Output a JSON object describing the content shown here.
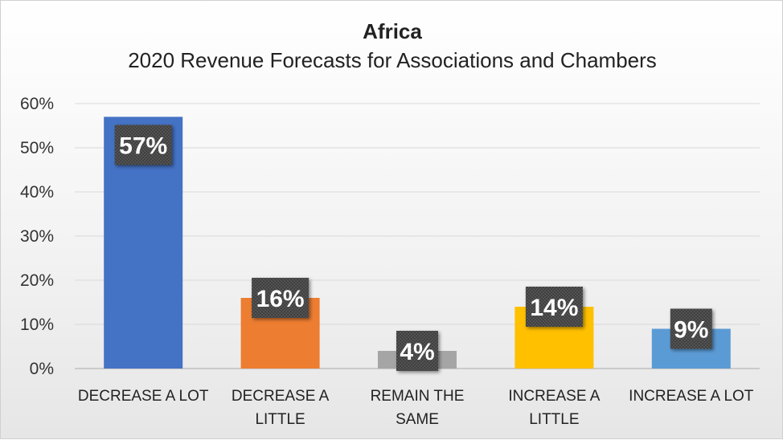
{
  "chart_data": {
    "type": "bar",
    "title": "Africa",
    "subtitle": "2020 Revenue Forecasts for Associations and Chambers",
    "categories": [
      [
        "DECREASE A LOT"
      ],
      [
        "DECREASE A",
        "LITTLE"
      ],
      [
        "REMAIN THE",
        "SAME"
      ],
      [
        "INCREASE A",
        "LITTLE"
      ],
      [
        "INCREASE A LOT"
      ]
    ],
    "values": [
      57,
      16,
      4,
      14,
      9
    ],
    "data_labels": [
      "57%",
      "16%",
      "4%",
      "14%",
      "9%"
    ],
    "colors": [
      "#4472C4",
      "#ED7D31",
      "#A5A5A5",
      "#FFC000",
      "#5B9BD5"
    ],
    "ylim": [
      0,
      60
    ],
    "yticks": [
      0,
      10,
      20,
      30,
      40,
      50,
      60
    ],
    "ytick_labels": [
      "0%",
      "10%",
      "20%",
      "30%",
      "40%",
      "50%",
      "60%"
    ],
    "grid": true,
    "legend": "none",
    "xlabel": "",
    "ylabel": ""
  }
}
